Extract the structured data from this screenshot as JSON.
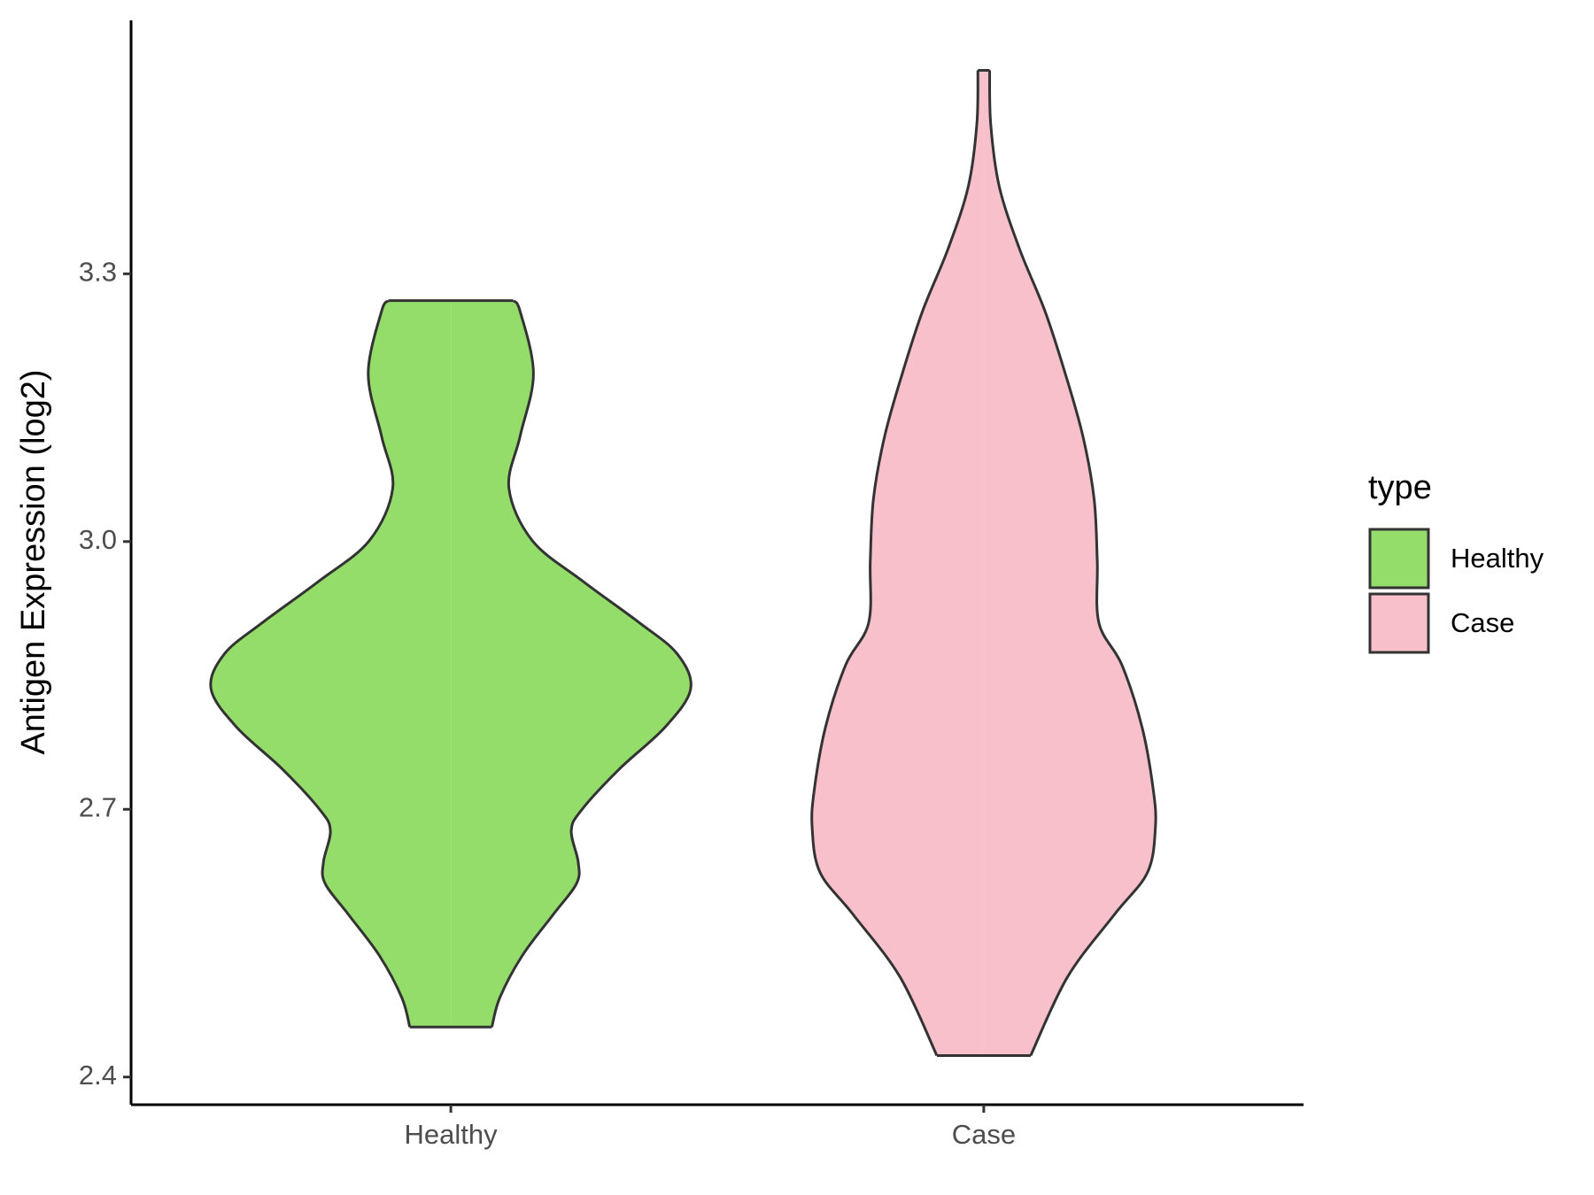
{
  "chart_data": {
    "type": "violin",
    "y_label": "Antigen Expression (log2)",
    "legend_title": "type",
    "legend_position": "right",
    "categories": [
      "Healthy",
      "Case"
    ],
    "ylim": [
      2.369,
      3.584
    ],
    "yticks": [
      2.4,
      2.7,
      {
        "value": 3,
        "label": "3.0"
      },
      3.3
    ],
    "series": [
      {
        "name": "Healthy",
        "color": "#94dd6b",
        "y": [
          3.27,
          3.258,
          3.188,
          3.118,
          3.06,
          3.001,
          2.955,
          2.909,
          2.874,
          2.835,
          2.792,
          2.745,
          2.699,
          2.676,
          2.641,
          2.617,
          2.582,
          2.536,
          2.489,
          2.456
        ],
        "half_width": [
          0.117,
          0.13,
          0.155,
          0.13,
          0.109,
          0.153,
          0.249,
          0.354,
          0.425,
          0.45,
          0.402,
          0.316,
          0.245,
          0.226,
          0.239,
          0.236,
          0.192,
          0.134,
          0.092,
          0.077
        ]
      },
      {
        "name": "Case",
        "color": "#f7c0cb",
        "y": [
          3.528,
          3.468,
          3.398,
          3.328,
          3.258,
          3.188,
          3.118,
          3.048,
          2.978,
          2.909,
          2.862,
          2.792,
          2.722,
          2.679,
          2.629,
          2.582,
          2.512,
          2.424
        ],
        "half_width": [
          0.011,
          0.013,
          0.029,
          0.067,
          0.115,
          0.153,
          0.186,
          0.207,
          0.213,
          0.216,
          0.259,
          0.297,
          0.318,
          0.322,
          0.307,
          0.245,
          0.157,
          0.088
        ]
      }
    ]
  }
}
